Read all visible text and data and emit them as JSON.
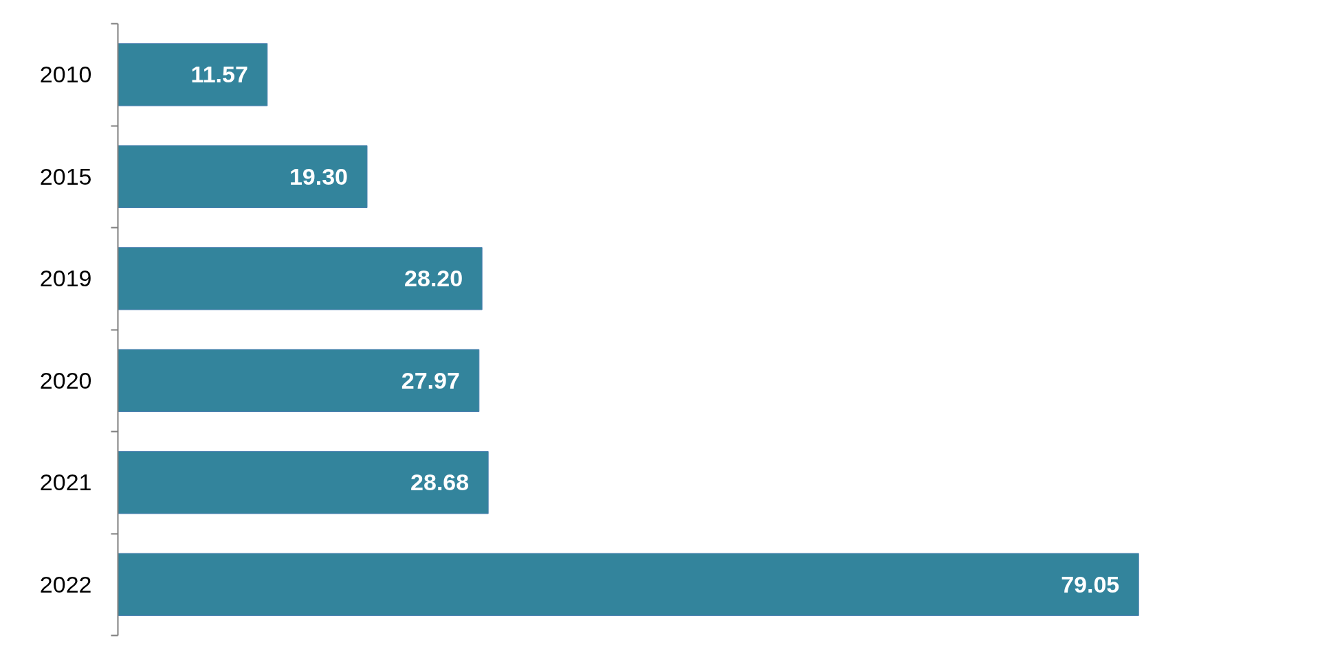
{
  "chart_data": {
    "type": "bar",
    "orientation": "horizontal",
    "categories": [
      "2010",
      "2015",
      "2019",
      "2020",
      "2021",
      "2022"
    ],
    "values": [
      11.57,
      19.3,
      28.2,
      27.97,
      28.68,
      79.05
    ],
    "value_labels": [
      "11.57",
      "19.30",
      "28.20",
      "27.97",
      "28.68",
      "79.05"
    ],
    "color": "#33849c",
    "tick_labels": "y"
  }
}
